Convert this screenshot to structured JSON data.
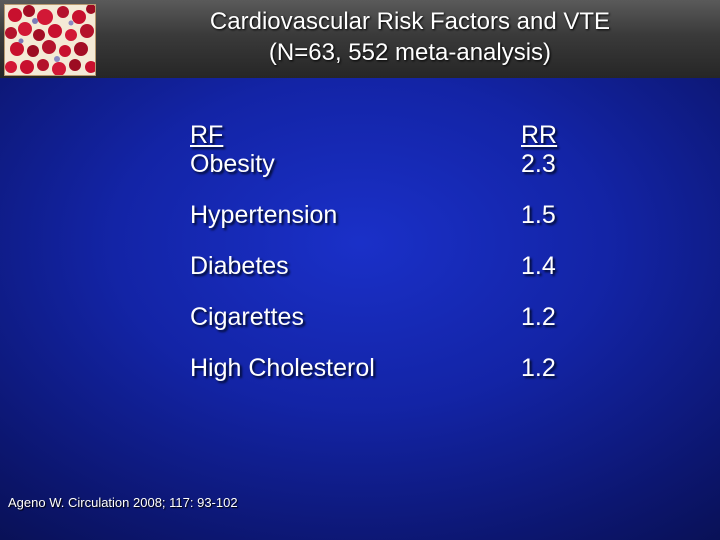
{
  "slide": {
    "title_line1": "Cardiovascular Risk Factors and VTE",
    "title_line2": "(N=63, 552 meta-analysis)",
    "logo_icon": "blood-cells-logo-icon"
  },
  "table": {
    "header_rf": "RF",
    "header_rr": "RR",
    "rows": [
      {
        "factor": "Obesity",
        "rr": "2.3"
      },
      {
        "factor": "Hypertension",
        "rr": "1.5"
      },
      {
        "factor": "Diabetes",
        "rr": "1.4"
      },
      {
        "factor": "Cigarettes",
        "rr": "1.2"
      },
      {
        "factor": "High Cholesterol",
        "rr": "1.2"
      }
    ]
  },
  "citation": "Ageno W. Circulation 2008; 117: 93-102",
  "colors": {
    "background": "#1324a6",
    "header_bar": "#3a3a3a",
    "text": "#ffffff",
    "cell_red": "#c8102e"
  }
}
